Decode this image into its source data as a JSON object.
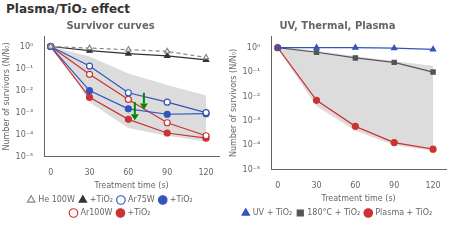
{
  "title": "Plasma/TiO₂ effect",
  "chart_data": [
    {
      "type": "line",
      "title": "Survivor curves",
      "x_label": "Treatment time (s)",
      "y_label": "Number of survivors (N/N₀)",
      "log": "y",
      "grid": false,
      "legend": "bottom",
      "xlim": [
        -5,
        130
      ],
      "xticks": [
        0,
        30,
        60,
        90,
        120
      ],
      "ylim": [
        1e-05,
        3.0
      ],
      "yticks": [
        {
          "value": 1e-05,
          "label": "10⁻⁵"
        },
        {
          "value": 0.0001,
          "label": "10⁻⁴"
        },
        {
          "value": 0.001,
          "label": "10⁻³"
        },
        {
          "value": 0.01,
          "label": "10⁻²"
        },
        {
          "value": 0.1,
          "label": "10⁻¹"
        },
        {
          "value": 1,
          "label": "10⁰"
        }
      ],
      "x": [
        0,
        30,
        60,
        90,
        120
      ],
      "series": [
        {
          "name": "He 100W",
          "color": "#888888",
          "marker": "triangle_open",
          "line_style": "dashed",
          "values": [
            1.0,
            0.85,
            0.72,
            0.6,
            0.32
          ]
        },
        {
          "name": "+TiO₂",
          "color": "#333333",
          "marker": "triangle",
          "line_style": "solid",
          "values": [
            1.0,
            0.65,
            0.48,
            0.38,
            0.25
          ]
        },
        {
          "name": "Ar75W",
          "color": "#3355bb",
          "marker": "circle_open",
          "line_style": "solid",
          "values": [
            1.0,
            0.13,
            0.008,
            0.003,
            0.001
          ]
        },
        {
          "name": "+TiO₂",
          "color": "#3355bb",
          "marker": "circle",
          "line_style": "solid",
          "values": [
            1.0,
            0.01,
            0.0015,
            0.00085,
            0.0009
          ]
        },
        {
          "name": "Ar100W",
          "color": "#cc3333",
          "marker": "circle_open",
          "line_style": "solid",
          "values": [
            1.0,
            0.055,
            0.004,
            0.00035,
            9e-05
          ]
        },
        {
          "name": "+TiO₂",
          "color": "#cc3333",
          "marker": "circle",
          "line_style": "solid",
          "values": [
            1.0,
            0.005,
            0.0005,
            0.00012,
            7e-05
          ]
        }
      ],
      "band": {
        "x": [
          0,
          15,
          30,
          60,
          90,
          120
        ],
        "upper": [
          1.0,
          0.6,
          0.35,
          0.06,
          0.018,
          0.006
        ],
        "lower": [
          1.0,
          0.08,
          0.003,
          0.0002,
          9e-05,
          5e-05
        ]
      },
      "annotations": [
        {
          "type": "arrow",
          "x": 65,
          "from": 0.003,
          "to": 0.00045,
          "color": "#008800"
        },
        {
          "type": "arrow",
          "x": 72,
          "from": 0.008,
          "to": 0.0014,
          "color": "#008800"
        }
      ]
    },
    {
      "type": "line",
      "title": "UV, Thermal, Plasma",
      "x_label": "Treatment time (s)",
      "y_label": "Number of survivors (N/N₀)",
      "log": "y",
      "grid": false,
      "legend": "bottom",
      "xlim": [
        -5,
        130
      ],
      "xticks": [
        0,
        30,
        60,
        90,
        120
      ],
      "ylim": [
        1e-05,
        3.0
      ],
      "yticks": [
        {
          "value": 1e-05,
          "label": "10⁻⁵"
        },
        {
          "value": 0.0001,
          "label": "10⁻⁴"
        },
        {
          "value": 0.001,
          "label": "10⁻³"
        },
        {
          "value": 0.01,
          "label": "10⁻²"
        },
        {
          "value": 0.1,
          "label": "10⁻¹"
        },
        {
          "value": 1,
          "label": "10⁰"
        }
      ],
      "x": [
        0,
        30,
        60,
        90,
        120
      ],
      "series": [
        {
          "name": "UV + TiO₂",
          "color": "#3355bb",
          "marker": "triangle",
          "line_style": "solid",
          "values": [
            1.0,
            1.0,
            1.0,
            0.95,
            0.85
          ]
        },
        {
          "name": "180°C + TiO₂",
          "color": "#555555",
          "marker": "square",
          "line_style": "solid",
          "values": [
            1.0,
            0.65,
            0.38,
            0.25,
            0.1
          ]
        },
        {
          "name": "Plasma + TiO₂",
          "color": "#cc3333",
          "marker": "circle",
          "line_style": "solid",
          "values": [
            1.0,
            0.007,
            0.0006,
            0.00013,
            7e-05
          ]
        }
      ],
      "band": {
        "x": [
          0,
          15,
          30,
          60,
          90,
          120
        ],
        "upper": [
          1.0,
          0.9,
          0.75,
          0.45,
          0.28,
          0.18
        ],
        "lower": [
          1.0,
          0.06,
          0.004,
          0.0004,
          0.0001,
          6e-05
        ]
      }
    }
  ]
}
